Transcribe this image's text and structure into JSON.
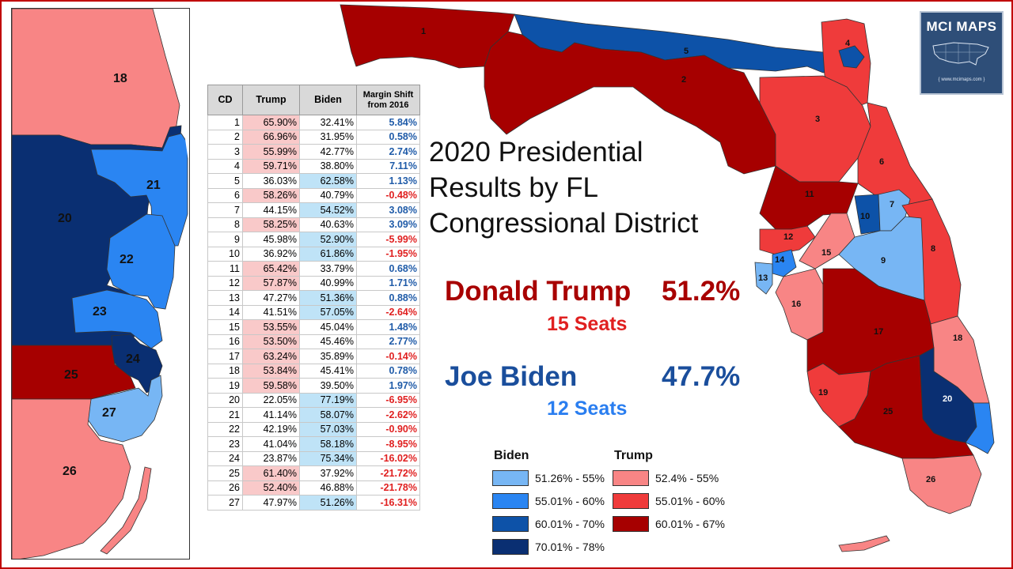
{
  "title_lines": [
    "2020 Presidential",
    "Results by FL",
    "Congressional District"
  ],
  "trump": {
    "name": "Donald Trump",
    "pct": "51.2%",
    "seats": "15 Seats",
    "color": "#a80000",
    "seats_color": "#e02020"
  },
  "biden": {
    "name": "Joe Biden",
    "pct": "47.7%",
    "seats": "12 Seats",
    "color": "#1a4e9c",
    "seats_color": "#2a7ef0"
  },
  "table": {
    "headers": {
      "cd": "CD",
      "trump": "Trump",
      "biden": "Biden",
      "margin_line1": "Margin Shift",
      "margin_line2": "from 2016"
    },
    "rows": [
      {
        "cd": "1",
        "trump": "65.90%",
        "biden": "32.41%",
        "margin": "5.84%"
      },
      {
        "cd": "2",
        "trump": "66.96%",
        "biden": "31.95%",
        "margin": "0.58%"
      },
      {
        "cd": "3",
        "trump": "55.99%",
        "biden": "42.77%",
        "margin": "2.74%"
      },
      {
        "cd": "4",
        "trump": "59.71%",
        "biden": "38.80%",
        "margin": "7.11%"
      },
      {
        "cd": "5",
        "trump": "36.03%",
        "biden": "62.58%",
        "margin": "1.13%"
      },
      {
        "cd": "6",
        "trump": "58.26%",
        "biden": "40.79%",
        "margin": "-0.48%"
      },
      {
        "cd": "7",
        "trump": "44.15%",
        "biden": "54.52%",
        "margin": "3.08%"
      },
      {
        "cd": "8",
        "trump": "58.25%",
        "biden": "40.63%",
        "margin": "3.09%"
      },
      {
        "cd": "9",
        "trump": "45.98%",
        "biden": "52.90%",
        "margin": "-5.99%"
      },
      {
        "cd": "10",
        "trump": "36.92%",
        "biden": "61.86%",
        "margin": "-1.95%"
      },
      {
        "cd": "11",
        "trump": "65.42%",
        "biden": "33.79%",
        "margin": "0.68%"
      },
      {
        "cd": "12",
        "trump": "57.87%",
        "biden": "40.99%",
        "margin": "1.71%"
      },
      {
        "cd": "13",
        "trump": "47.27%",
        "biden": "51.36%",
        "margin": "0.88%"
      },
      {
        "cd": "14",
        "trump": "41.51%",
        "biden": "57.05%",
        "margin": "-2.64%"
      },
      {
        "cd": "15",
        "trump": "53.55%",
        "biden": "45.04%",
        "margin": "1.48%"
      },
      {
        "cd": "16",
        "trump": "53.50%",
        "biden": "45.46%",
        "margin": "2.77%"
      },
      {
        "cd": "17",
        "trump": "63.24%",
        "biden": "35.89%",
        "margin": "-0.14%"
      },
      {
        "cd": "18",
        "trump": "53.84%",
        "biden": "45.41%",
        "margin": "0.78%"
      },
      {
        "cd": "19",
        "trump": "59.58%",
        "biden": "39.50%",
        "margin": "1.97%"
      },
      {
        "cd": "20",
        "trump": "22.05%",
        "biden": "77.19%",
        "margin": "-6.95%"
      },
      {
        "cd": "21",
        "trump": "41.14%",
        "biden": "58.07%",
        "margin": "-2.62%"
      },
      {
        "cd": "22",
        "trump": "42.19%",
        "biden": "57.03%",
        "margin": "-0.90%"
      },
      {
        "cd": "23",
        "trump": "41.04%",
        "biden": "58.18%",
        "margin": "-8.95%"
      },
      {
        "cd": "24",
        "trump": "23.87%",
        "biden": "75.34%",
        "margin": "-16.02%"
      },
      {
        "cd": "25",
        "trump": "61.40%",
        "biden": "37.92%",
        "margin": "-21.72%"
      },
      {
        "cd": "26",
        "trump": "52.40%",
        "biden": "46.88%",
        "margin": "-21.78%"
      },
      {
        "cd": "27",
        "trump": "47.97%",
        "biden": "51.26%",
        "margin": "-16.31%"
      }
    ]
  },
  "legend": {
    "biden_title": "Biden",
    "trump_title": "Trump",
    "biden": [
      {
        "label": "51.26% - 55%",
        "color": "#77b6f4"
      },
      {
        "label": "55.01% - 60%",
        "color": "#2a85f2"
      },
      {
        "label": "60.01% - 70%",
        "color": "#0d52a8"
      },
      {
        "label": "70.01% - 78%",
        "color": "#0a2f72"
      }
    ],
    "trump": [
      {
        "label": "52.4% - 55%",
        "color": "#f88585"
      },
      {
        "label": "55.01% - 60%",
        "color": "#ef3b3b"
      },
      {
        "label": "60.01% - 67%",
        "color": "#a60000"
      }
    ]
  },
  "colors": {
    "biden_light": "#77b6f4",
    "biden_mid": "#2a85f2",
    "biden_dark": "#0d52a8",
    "biden_darkest": "#0a2f72",
    "trump_light": "#f88585",
    "trump_mid": "#ef3b3b",
    "trump_dark": "#a60000",
    "trump_cell": "#f9c9c9",
    "biden_cell": "#bfe3f7",
    "pos_shift": "#1f5ba8",
    "neg_shift": "#e02020"
  },
  "inset_labels": [
    "18",
    "21",
    "20",
    "22",
    "23",
    "24",
    "25",
    "27",
    "26"
  ],
  "map_labels": [
    "1",
    "2",
    "3",
    "4",
    "5",
    "6",
    "7",
    "8",
    "9",
    "10",
    "11",
    "12",
    "13",
    "14",
    "15",
    "16",
    "17",
    "18",
    "19",
    "20",
    "25",
    "26"
  ],
  "logo": {
    "title": "MCI MAPS",
    "url": "{ www.mcimaps.com }"
  }
}
